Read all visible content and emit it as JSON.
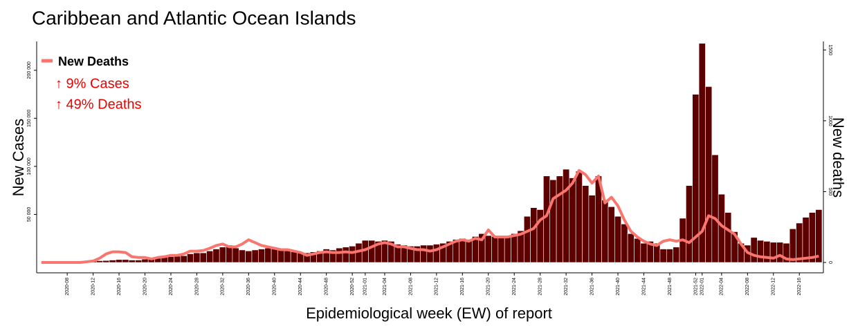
{
  "chart_data": {
    "type": "bar-line",
    "title": "Caribbean and Atlantic Ocean Islands",
    "x_label": "Epidemiological week (EW) of report",
    "y_label": "New Cases",
    "y2_label": "New deaths",
    "annotations": [
      "↑ 9% Cases",
      "↑ 49% Deaths"
    ],
    "categories": [
      null,
      null,
      null,
      null,
      "2020-08",
      null,
      null,
      null,
      "2020-12",
      null,
      null,
      null,
      "2020-16",
      null,
      null,
      null,
      "2020-20",
      null,
      null,
      null,
      "2020-24",
      null,
      null,
      null,
      "2020-28",
      null,
      null,
      null,
      "2020-32",
      null,
      null,
      null,
      "2020-36",
      null,
      null,
      null,
      "2020-40",
      null,
      null,
      null,
      "2020-44",
      null,
      null,
      null,
      "2020-48",
      null,
      null,
      null,
      "2020-52",
      null,
      "2021-01",
      null,
      null,
      "2021-04",
      null,
      null,
      null,
      "2021-08",
      null,
      null,
      null,
      "2021-12",
      null,
      null,
      null,
      "2021-16",
      null,
      null,
      null,
      "2021-20",
      null,
      null,
      null,
      "2021-24",
      null,
      null,
      null,
      "2021-28",
      null,
      null,
      null,
      "2021-32",
      null,
      null,
      null,
      "2021-36",
      null,
      null,
      null,
      "2021-40",
      null,
      null,
      null,
      "2021-44",
      null,
      null,
      null,
      "2021-48",
      null,
      null,
      null,
      "2021-52",
      "2022-01",
      null,
      null,
      "2022-04",
      null,
      null,
      null,
      "2022-08",
      null,
      null,
      null,
      "2022-12",
      null,
      null,
      null,
      "2022-16",
      null,
      null,
      null
    ],
    "series": [
      {
        "color": "#5c0000",
        "values": [
          0,
          0,
          0,
          0,
          0,
          100,
          300,
          500,
          1200,
          1800,
          2000,
          2500,
          3000,
          3000,
          2500,
          2500,
          3500,
          4000,
          5000,
          5500,
          6000,
          6500,
          7000,
          9000,
          10000,
          10000,
          12000,
          14000,
          16000,
          18000,
          15000,
          13000,
          12000,
          13000,
          14000,
          15000,
          14000,
          13000,
          12000,
          11000,
          10000,
          10000,
          11000,
          12000,
          14000,
          13000,
          15000,
          16000,
          17000,
          20000,
          23000,
          23000,
          22000,
          23000,
          22000,
          19000,
          18000,
          17000,
          17000,
          18000,
          18000,
          19000,
          20000,
          22000,
          24000,
          25000,
          24000,
          27000,
          30000,
          28000,
          27000,
          26000,
          27000,
          30000,
          33000,
          48000,
          57000,
          55000,
          90000,
          86000,
          90000,
          97000,
          88000,
          95000,
          80000,
          70000,
          90000,
          65000,
          58000,
          48000,
          40000,
          30000,
          25000,
          20000,
          22000,
          20000,
          14000,
          14000,
          16000,
          46000,
          80000,
          175000,
          228000,
          183000,
          112000,
          71000,
          52000,
          32000,
          20000,
          18000,
          26000,
          23000,
          22000,
          21000,
          21000,
          20000,
          35000,
          41000,
          47000,
          52000,
          55000
        ]
      },
      {
        "name": "New Deaths",
        "color": "#f8766d",
        "axis": "y2",
        "values": [
          0,
          0,
          0,
          0,
          0,
          0,
          0,
          5,
          10,
          30,
          60,
          75,
          75,
          70,
          40,
          35,
          35,
          25,
          35,
          40,
          50,
          50,
          60,
          80,
          80,
          85,
          100,
          120,
          130,
          110,
          110,
          130,
          160,
          140,
          120,
          110,
          100,
          90,
          90,
          80,
          70,
          50,
          60,
          70,
          75,
          70,
          70,
          75,
          70,
          80,
          90,
          110,
          130,
          140,
          130,
          110,
          110,
          100,
          90,
          90,
          80,
          90,
          110,
          130,
          150,
          160,
          150,
          170,
          160,
          230,
          180,
          180,
          180,
          190,
          200,
          220,
          240,
          300,
          330,
          450,
          480,
          510,
          560,
          650,
          620,
          560,
          610,
          420,
          460,
          400,
          300,
          220,
          180,
          150,
          130,
          120,
          150,
          160,
          150,
          160,
          140,
          180,
          220,
          330,
          310,
          260,
          230,
          200,
          130,
          70,
          50,
          40,
          35,
          30,
          50,
          25,
          20,
          25,
          30,
          35,
          45
        ]
      }
    ],
    "ylim": [
      0,
      230000
    ],
    "yticks": [
      {
        "value": 50000,
        "label": "50 000"
      },
      {
        "value": 100000,
        "label": "100 000"
      },
      {
        "value": 150000,
        "label": "150 000"
      },
      {
        "value": 200000,
        "label": "200 000"
      }
    ],
    "y2lim": [
      0,
      1560
    ],
    "y2ticks": [
      0,
      500,
      1000,
      1500
    ],
    "legend": "top-left"
  }
}
